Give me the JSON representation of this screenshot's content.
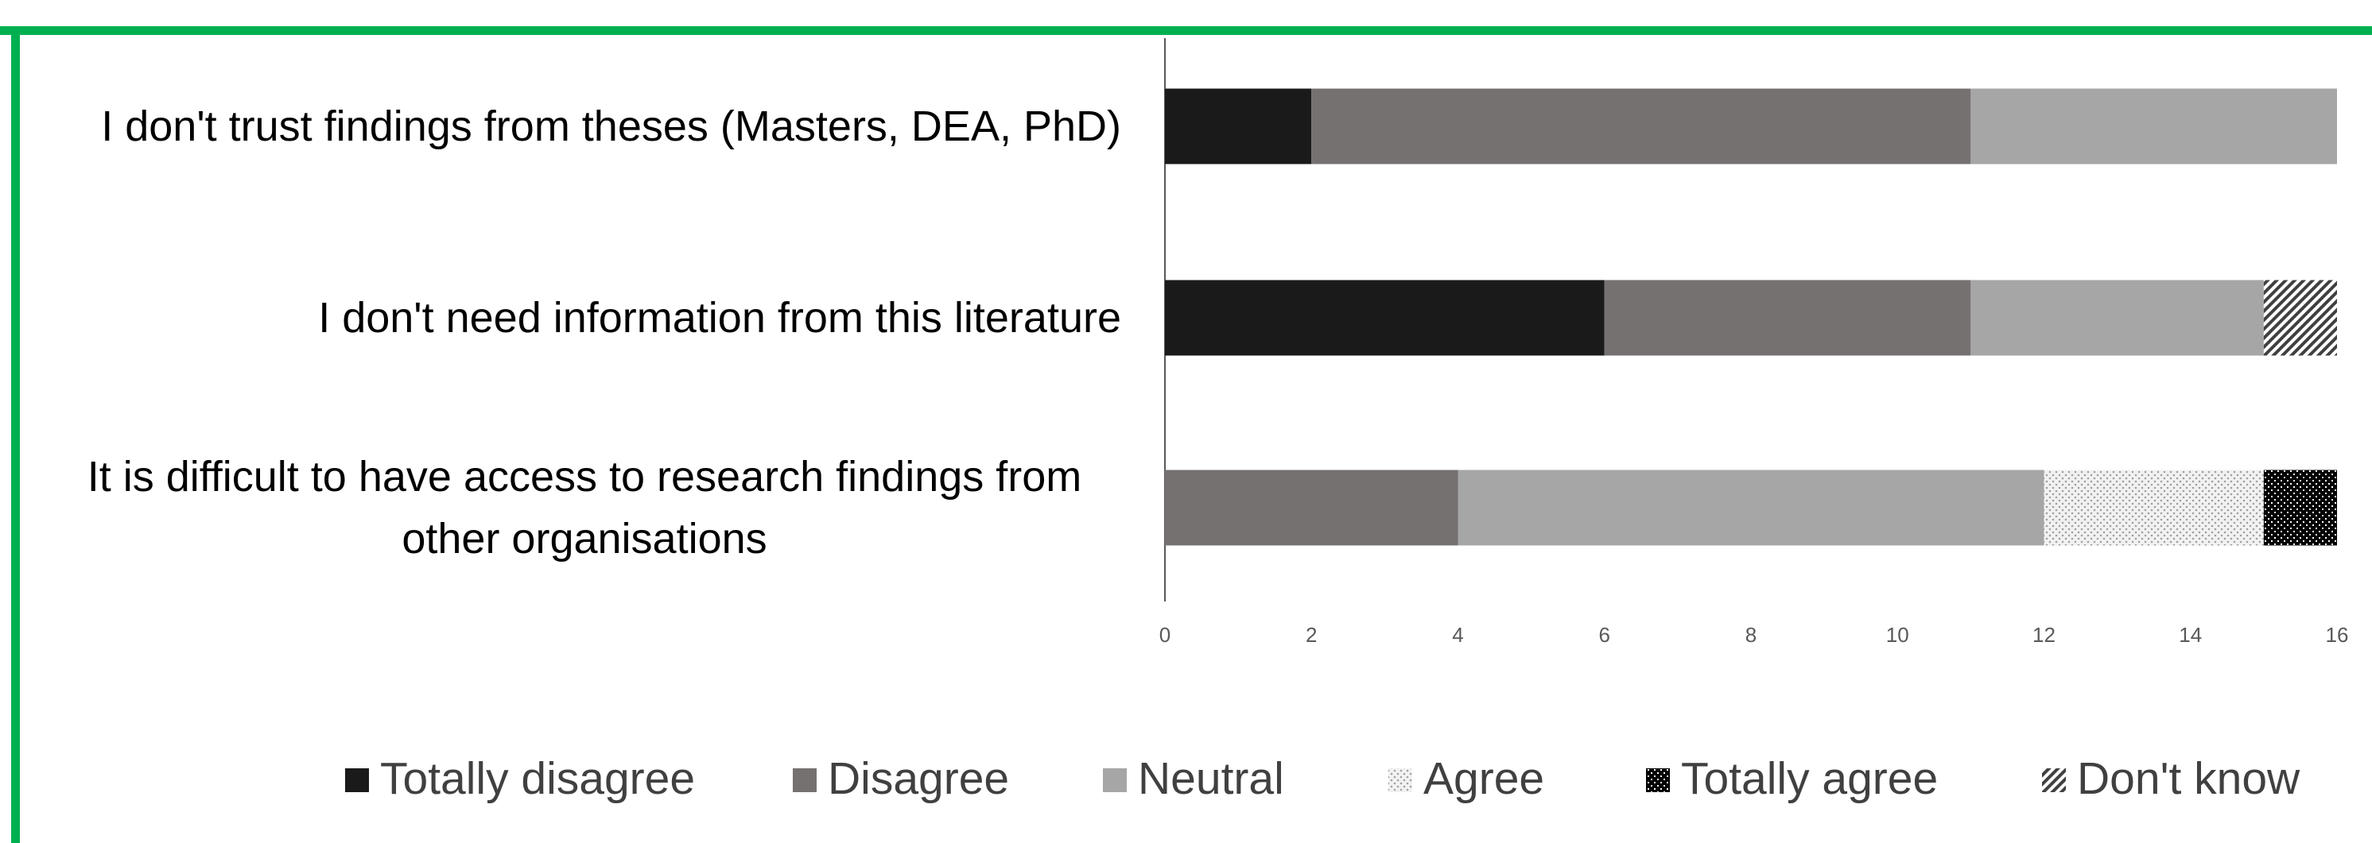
{
  "chart_data": {
    "type": "stacked-bar-horizontal",
    "categories": [
      "I don't trust findings from theses (Masters, DEA, PhD)",
      "I don't need information from this literature",
      "It is difficult to have access to research findings from other organisations"
    ],
    "series": [
      {
        "name": "Totally disagree",
        "color": "#1a1a1a",
        "values": [
          2,
          6,
          0
        ]
      },
      {
        "name": "Disagree",
        "color": "#767171",
        "values": [
          9,
          5,
          4
        ]
      },
      {
        "name": "Neutral",
        "color": "#a6a6a6",
        "values": [
          5,
          4,
          8
        ]
      },
      {
        "name": "Agree",
        "color": "#d9d9d9",
        "values": [
          0,
          0,
          3
        ]
      },
      {
        "name": "Totally agree",
        "color": "#000000",
        "values": [
          0,
          0,
          1
        ]
      },
      {
        "name": "Don't know",
        "color": "#595959",
        "values": [
          0,
          1,
          0
        ]
      }
    ],
    "xlim": [
      0,
      16
    ],
    "xticks": [
      0,
      2,
      4,
      6,
      8,
      10,
      12,
      14,
      16
    ],
    "legend": "bottom"
  }
}
